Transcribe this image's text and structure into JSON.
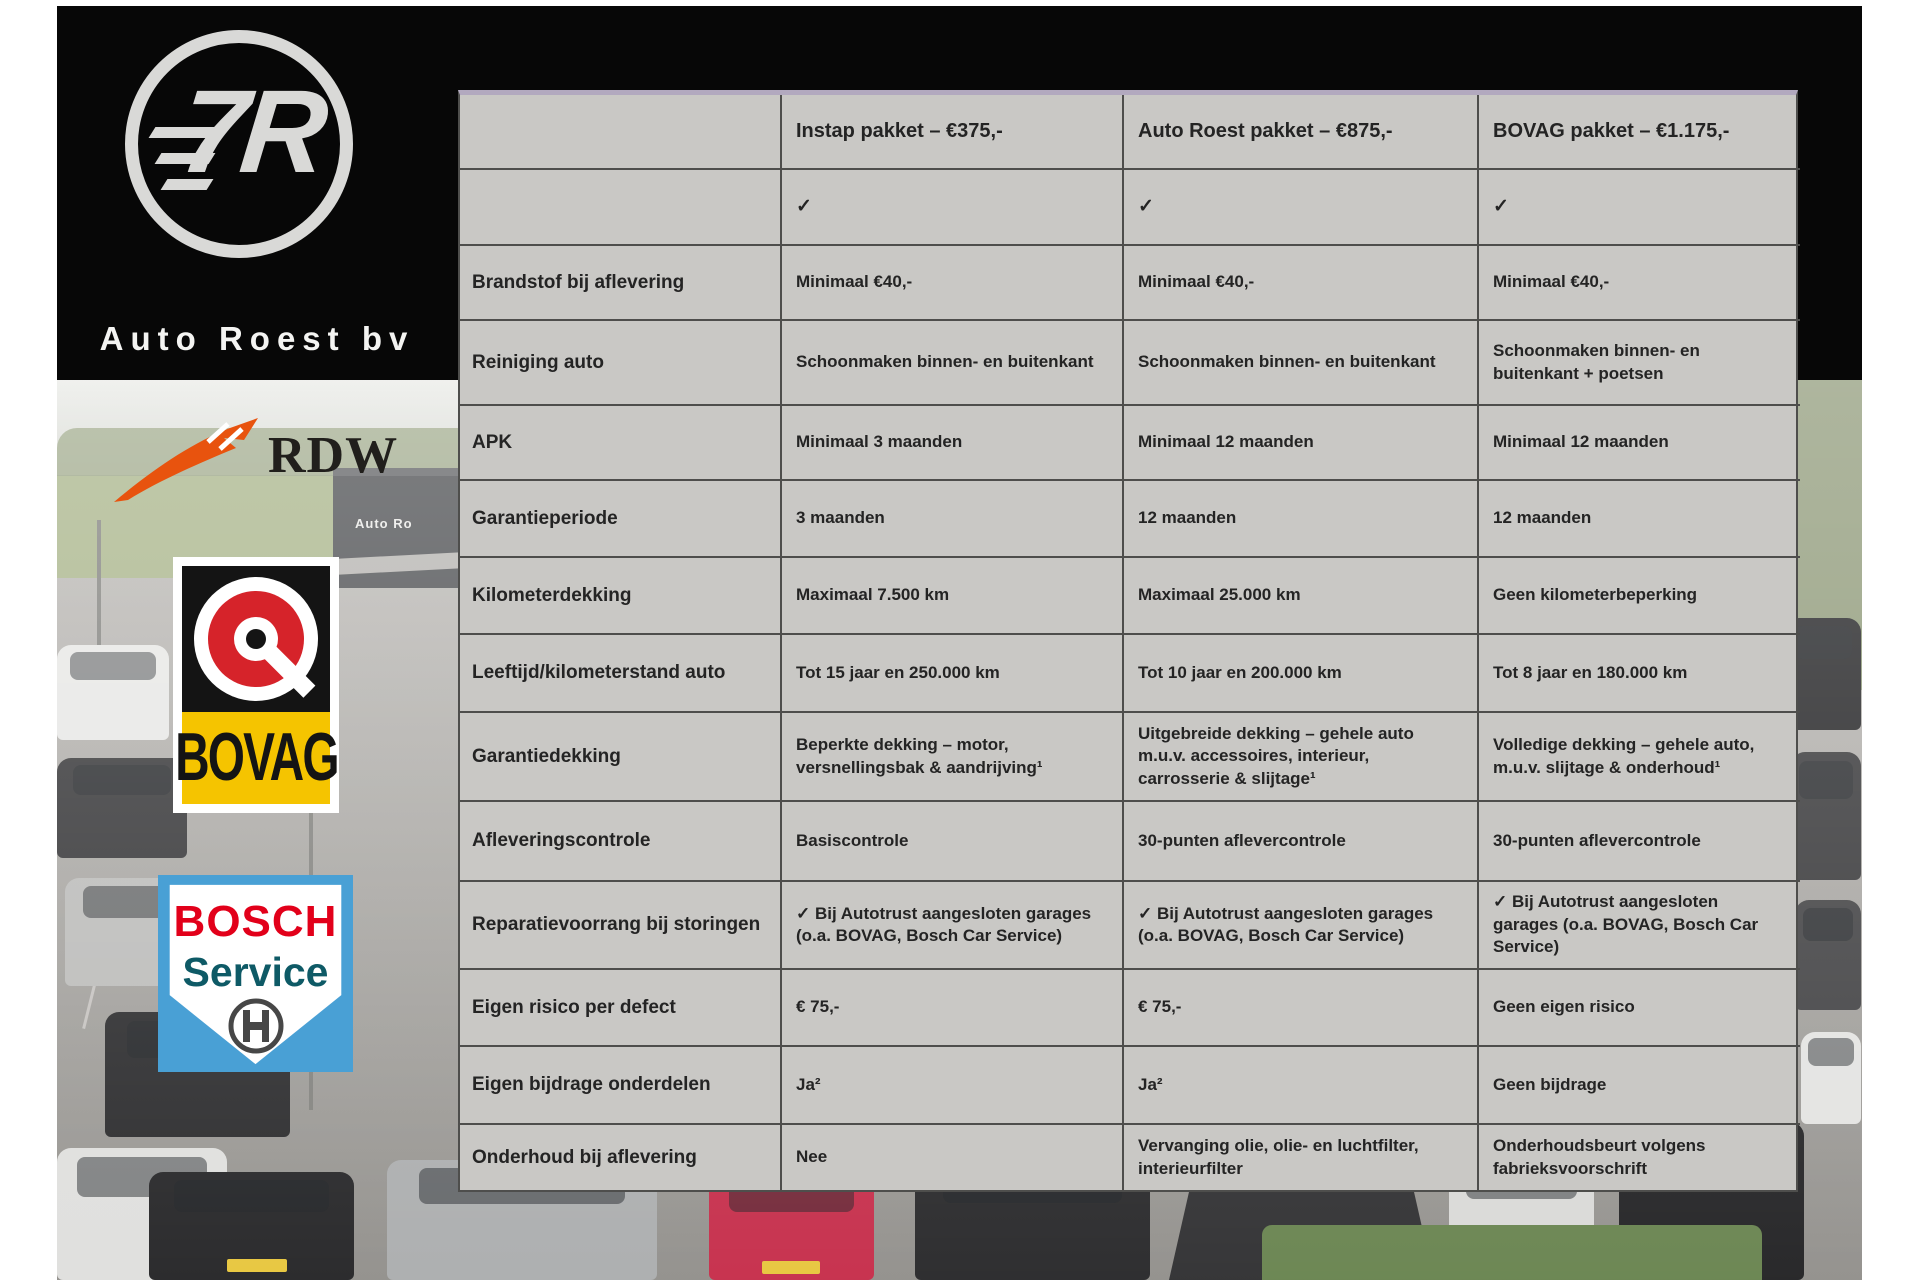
{
  "colors": {
    "band-black": "#070707",
    "table-bg": "#c9c8c5",
    "table-border": "#4e4e4c",
    "table-top-border": "#b2a9bf",
    "text-dark": "#242424",
    "logo-gray": "#d9d9d7",
    "rdw-orange": "#e8530e",
    "bovag-red": "#d6232a",
    "bovag-yellow": "#f5c400",
    "bosch-blue": "#49a0d5",
    "bosch-red": "#e2001a",
    "bosch-teal": "#0e5a66"
  },
  "branding": {
    "name": "Auto Roest bv",
    "monogram": "7R"
  },
  "partner_logos": {
    "rdw": "RDW",
    "bovag": "BOVAG",
    "bosch_line1": "BOSCH",
    "bosch_line2": "Service"
  },
  "photo": {
    "building_sign": "Auto Ro"
  },
  "table": {
    "columns": [
      "",
      "Instap pakket – €375,-",
      "Auto Roest pakket – €875,-",
      "BOVAG pakket – €1.175,-"
    ],
    "rows": [
      {
        "label": "",
        "values": [
          "✓",
          "✓",
          "✓"
        ]
      },
      {
        "label": "Brandstof bij aflevering",
        "values": [
          "Minimaal €40,-",
          "Minimaal €40,-",
          "Minimaal €40,-"
        ]
      },
      {
        "label": "Reiniging auto",
        "values": [
          "Schoonmaken binnen- en buitenkant",
          "Schoonmaken binnen- en buitenkant",
          "Schoonmaken binnen- en buitenkant + poetsen"
        ]
      },
      {
        "label": "APK",
        "values": [
          "Minimaal 3 maanden",
          "Minimaal 12 maanden",
          "Minimaal 12 maanden"
        ]
      },
      {
        "label": "Garantieperiode",
        "values": [
          "3 maanden",
          "12 maanden",
          "12 maanden"
        ]
      },
      {
        "label": "Kilometerdekking",
        "values": [
          "Maximaal 7.500 km",
          "Maximaal 25.000 km",
          "Geen kilometerbeperking"
        ]
      },
      {
        "label": "Leeftijd/kilometerstand auto",
        "values": [
          "Tot 15 jaar en 250.000 km",
          "Tot 10 jaar en 200.000 km",
          "Tot 8 jaar en 180.000 km"
        ]
      },
      {
        "label": "Garantiedekking",
        "values": [
          "Beperkte dekking – motor, versnellingsbak & aandrijving¹",
          "Uitgebreide dekking – gehele auto m.u.v. accessoires, interieur, carrosserie & slijtage¹",
          "Volledige dekking – gehele auto, m.u.v. slijtage & onderhoud¹"
        ]
      },
      {
        "label": "Afleveringscontrole",
        "values": [
          "Basiscontrole",
          "30-punten aflevercontrole",
          "30-punten aflevercontrole"
        ]
      },
      {
        "label": "Reparatievoorrang bij storingen",
        "values": [
          "✓ Bij Autotrust aangesloten garages (o.a. BOVAG, Bosch Car Service)",
          "✓ Bij Autotrust aangesloten garages (o.a. BOVAG, Bosch Car Service)",
          "✓ Bij Autotrust aangesloten garages (o.a. BOVAG, Bosch Car Service)"
        ]
      },
      {
        "label": "Eigen risico per defect",
        "values": [
          "€ 75,-",
          "€ 75,-",
          "Geen eigen risico"
        ]
      },
      {
        "label": "Eigen bijdrage onderdelen",
        "values": [
          "Ja²",
          "Ja²",
          "Geen bijdrage"
        ]
      },
      {
        "label": "Onderhoud bij aflevering",
        "values": [
          "Nee",
          "Vervanging olie, olie- en luchtfilter, interieurfilter",
          "Onderhoudsbeurt volgens fabrieksvoorschrift"
        ]
      }
    ]
  }
}
